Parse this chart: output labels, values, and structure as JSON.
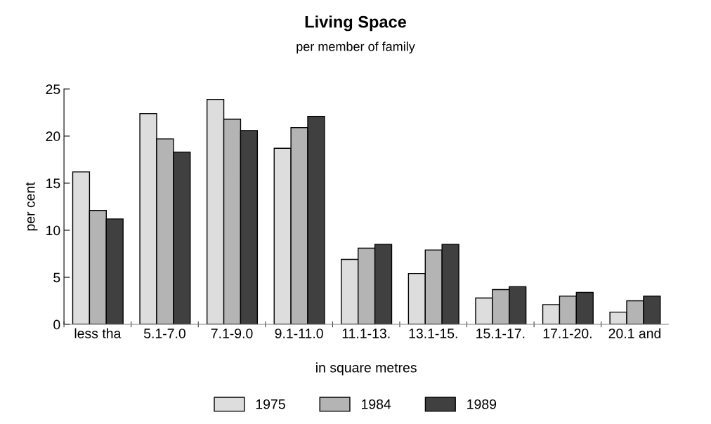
{
  "chart_data": {
    "type": "bar",
    "title": "Living Space",
    "subtitle": "per member of family",
    "xlabel": "in square metres",
    "ylabel": "per cent",
    "categories": [
      "less tha",
      "5.1-7.0",
      "7.1-9.0",
      "9.1-11.0",
      "11.1-13.",
      "13.1-15.",
      "15.1-17.",
      "17.1-20.",
      "20.1 and"
    ],
    "series": [
      {
        "name": "1975",
        "color": "#dddddd",
        "values": [
          16.2,
          22.4,
          23.9,
          18.7,
          6.9,
          5.4,
          2.8,
          2.1,
          1.3
        ]
      },
      {
        "name": "1984",
        "color": "#b4b4b4",
        "values": [
          12.1,
          19.7,
          21.8,
          20.9,
          8.1,
          7.9,
          3.7,
          3.0,
          2.5
        ]
      },
      {
        "name": "1989",
        "color": "#404040",
        "values": [
          11.2,
          18.3,
          20.6,
          22.1,
          8.5,
          8.5,
          4.0,
          3.4,
          3.0
        ]
      }
    ],
    "ylim": [
      0,
      25
    ],
    "yticks": [
      0,
      5,
      10,
      15,
      20,
      25
    ],
    "grid": false,
    "legend": "bottom"
  }
}
